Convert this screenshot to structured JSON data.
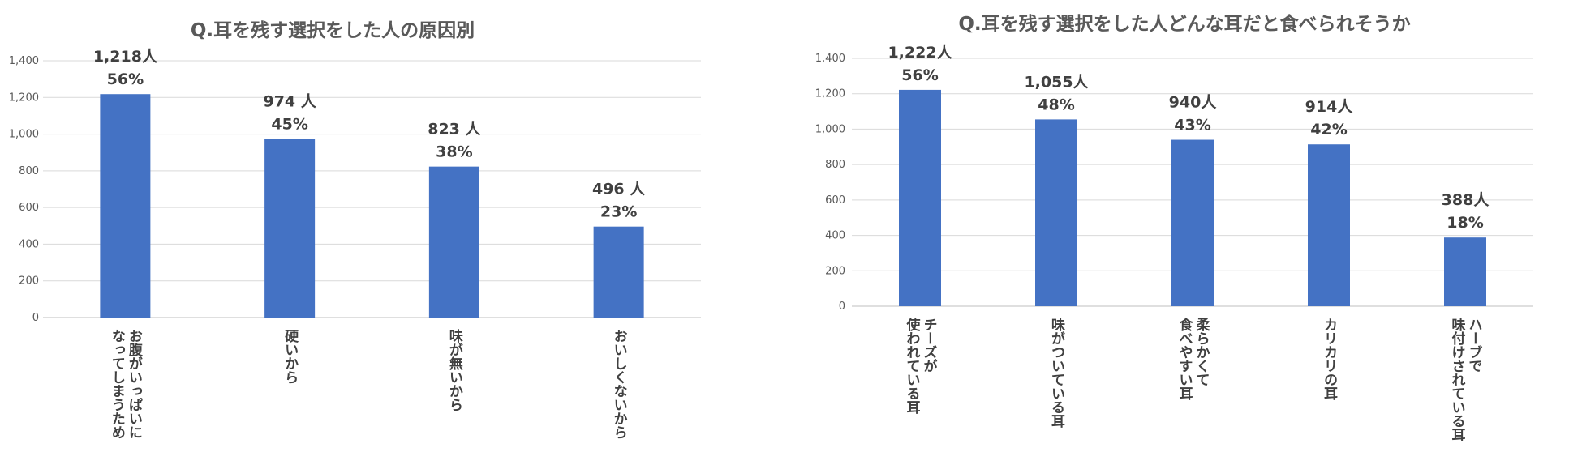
{
  "chart_data": [
    {
      "type": "bar",
      "title": "Q.耳を残す選択をした人の原因別",
      "categories": [
        [
          "お腹がいっぱいに",
          "なってしまうため"
        ],
        [
          "硬いから"
        ],
        [
          "味が無いから"
        ],
        [
          "おいしくないから"
        ]
      ],
      "values": [
        1218,
        974,
        823,
        496
      ],
      "count_labels": [
        "1,218人",
        "974 人",
        "823 人",
        "496 人"
      ],
      "percent_labels": [
        "56%",
        "45%",
        "38%",
        "23%"
      ],
      "yticks": [
        "0",
        "200",
        "400",
        "600",
        "800",
        "1,000",
        "1,200",
        "1,400"
      ],
      "ylim": [
        0,
        1400
      ],
      "grid": true,
      "bar_color": "#4472C4",
      "xlabel": "",
      "ylabel": ""
    },
    {
      "type": "bar",
      "title": "Q.耳を残す選択をした人どんな耳だと食べられそうか",
      "categories": [
        [
          "チーズが",
          "使われている耳"
        ],
        [
          "味がついている耳"
        ],
        [
          "柔らかくて",
          "食べやすい耳"
        ],
        [
          "カリカリの耳"
        ],
        [
          "ハーブで",
          "味付けされている耳"
        ]
      ],
      "values": [
        1222,
        1055,
        940,
        914,
        388
      ],
      "count_labels": [
        "1,222人",
        "1,055人",
        "940人",
        "914人",
        "388人"
      ],
      "percent_labels": [
        "56%",
        "48%",
        "43%",
        "42%",
        "18%"
      ],
      "yticks": [
        "0",
        "200",
        "400",
        "600",
        "800",
        "1,000",
        "1,200",
        "1,400"
      ],
      "ylim": [
        0,
        1400
      ],
      "grid": true,
      "bar_color": "#4472C4",
      "xlabel": "",
      "ylabel": ""
    }
  ]
}
